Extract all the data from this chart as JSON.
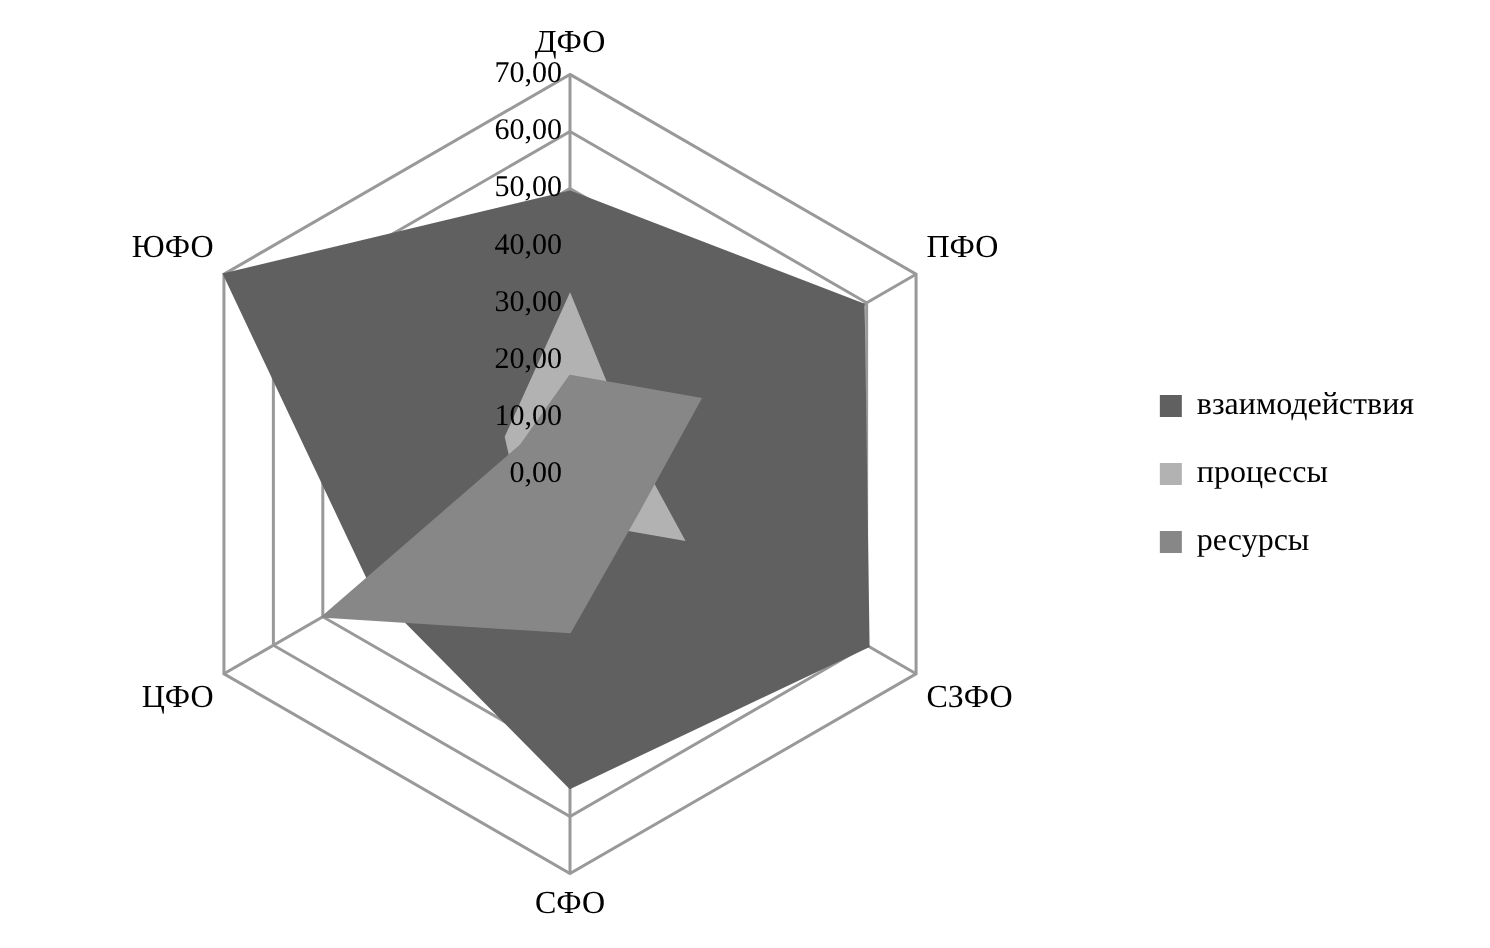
{
  "chart_data": {
    "type": "radar",
    "categories": [
      "ДФО",
      "ПФО",
      "СЗФО",
      "СФО",
      "ЦФО",
      "ЮФО"
    ],
    "series": [
      {
        "name": "взаимодействия",
        "color": "#606060",
        "values": [
          49.5,
          59.4,
          60.4,
          55,
          40,
          70
        ]
      },
      {
        "name": "процессы",
        "color": "#b2b2b2",
        "values": [
          31.4,
          12,
          23,
          8,
          10,
          13
        ]
      },
      {
        "name": "ресурсы",
        "color": "#878787",
        "values": [
          17.2,
          26.4,
          13.7,
          27.7,
          50,
          10
        ]
      }
    ],
    "ylim": [
      0,
      70
    ],
    "yticks": [
      {
        "value": 0,
        "label": "0,00"
      },
      {
        "value": 10,
        "label": "10,00"
      },
      {
        "value": 20,
        "label": "20,00"
      },
      {
        "value": 30,
        "label": "30,00"
      },
      {
        "value": 40,
        "label": "40,00"
      },
      {
        "value": 50,
        "label": "50,00"
      },
      {
        "value": 60,
        "label": "60,00"
      },
      {
        "value": 70,
        "label": "70,00"
      }
    ],
    "grid": true,
    "legend": "right"
  }
}
